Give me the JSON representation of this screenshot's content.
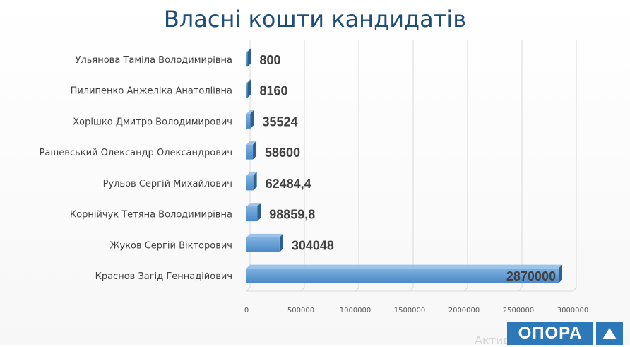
{
  "title": "Власні кошти кандидатів",
  "chart_data": {
    "type": "bar",
    "orientation": "horizontal",
    "title": "Власні кошти кандидатів",
    "categories": [
      "Ульянова Таміла Володимирівна",
      "Пилипенко Анжеліка Анатоліївна",
      "Хорішко Дмитро Володимирович",
      "Рашевський Олександр Олександрович",
      "Рульов Сергій Михайлович",
      "Корнійчук Тетяна Володимирівна",
      "Жуков Сергій Вікторович",
      "Краснов Загід Геннадійович"
    ],
    "values": [
      800,
      8160,
      35524,
      58600,
      62484.4,
      98859.8,
      304048,
      2870000
    ],
    "value_labels": [
      "800",
      "8160",
      "35524",
      "58600",
      "62484,4",
      "98859,8",
      "304048",
      "2870000"
    ],
    "xticks": [
      "0",
      "500000",
      "1000000",
      "1500000",
      "2000000",
      "2500000",
      "3000000"
    ],
    "xlim": [
      0,
      3000000
    ],
    "grid": true,
    "legend": "none",
    "bar_color": "#5b9bd5"
  },
  "logo": {
    "text": "ОПОРА"
  },
  "watermark": "Активация Windows"
}
